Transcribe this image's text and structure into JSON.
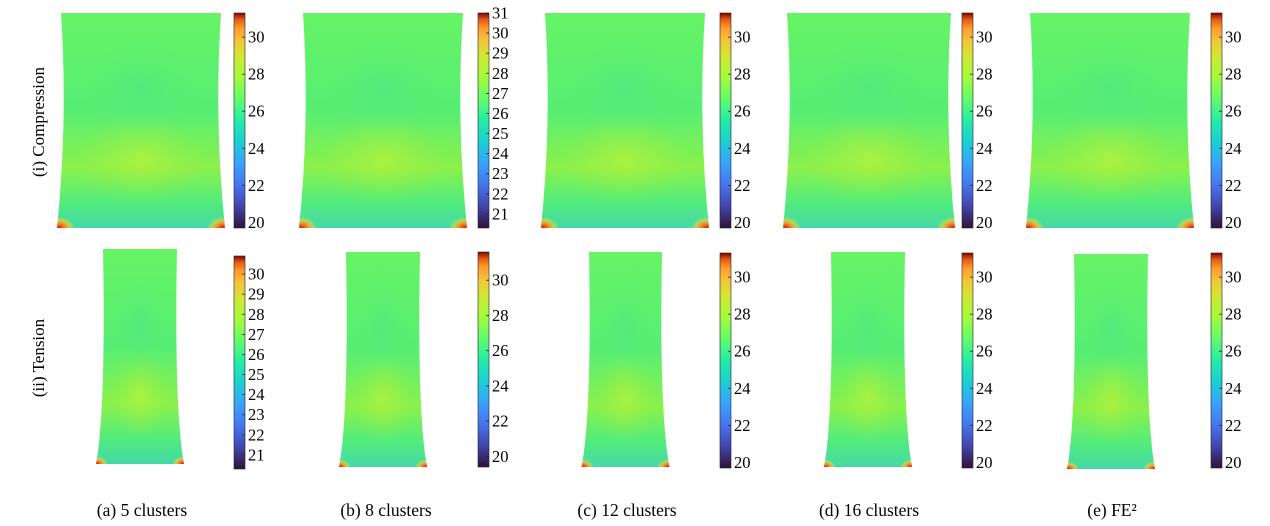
{
  "chart_data": {
    "type": "heatmap",
    "colormap": "turbo",
    "rows": [
      "(i) Compression",
      "(ii) Tension"
    ],
    "columns": [
      "(a) 5 clusters",
      "(b) 8 clusters",
      "(c) 12 clusters",
      "(d) 16 clusters",
      "(e) FE²"
    ],
    "panels": [
      [
        {
          "ticks": [
            "20",
            "22",
            "24",
            "26",
            "28",
            "30"
          ],
          "clim": [
            19.7,
            31.3
          ]
        },
        {
          "ticks": [
            "21",
            "22",
            "23",
            "24",
            "25",
            "26",
            "27",
            "28",
            "29",
            "30",
            "31"
          ],
          "clim": [
            20.3,
            31.0
          ]
        },
        {
          "ticks": [
            "20",
            "22",
            "24",
            "26",
            "28",
            "30"
          ],
          "clim": [
            19.7,
            31.3
          ]
        },
        {
          "ticks": [
            "20",
            "22",
            "24",
            "26",
            "28",
            "30"
          ],
          "clim": [
            19.7,
            31.3
          ]
        },
        {
          "ticks": [
            "20",
            "22",
            "24",
            "26",
            "28",
            "30"
          ],
          "clim": [
            19.7,
            31.3
          ]
        }
      ],
      [
        {
          "ticks": [
            "21",
            "22",
            "23",
            "24",
            "25",
            "26",
            "27",
            "28",
            "29",
            "30"
          ],
          "clim": [
            20.3,
            30.9
          ]
        },
        {
          "ticks": [
            "20",
            "22",
            "24",
            "26",
            "28",
            "30"
          ],
          "clim": [
            19.4,
            31.6
          ]
        },
        {
          "ticks": [
            "20",
            "22",
            "24",
            "26",
            "28",
            "30"
          ],
          "clim": [
            19.7,
            31.3
          ]
        },
        {
          "ticks": [
            "20",
            "22",
            "24",
            "26",
            "28",
            "30"
          ],
          "clim": [
            19.7,
            31.3
          ]
        },
        {
          "ticks": [
            "20",
            "22",
            "24",
            "26",
            "28",
            "30"
          ],
          "clim": [
            19.7,
            31.3
          ]
        }
      ]
    ]
  }
}
